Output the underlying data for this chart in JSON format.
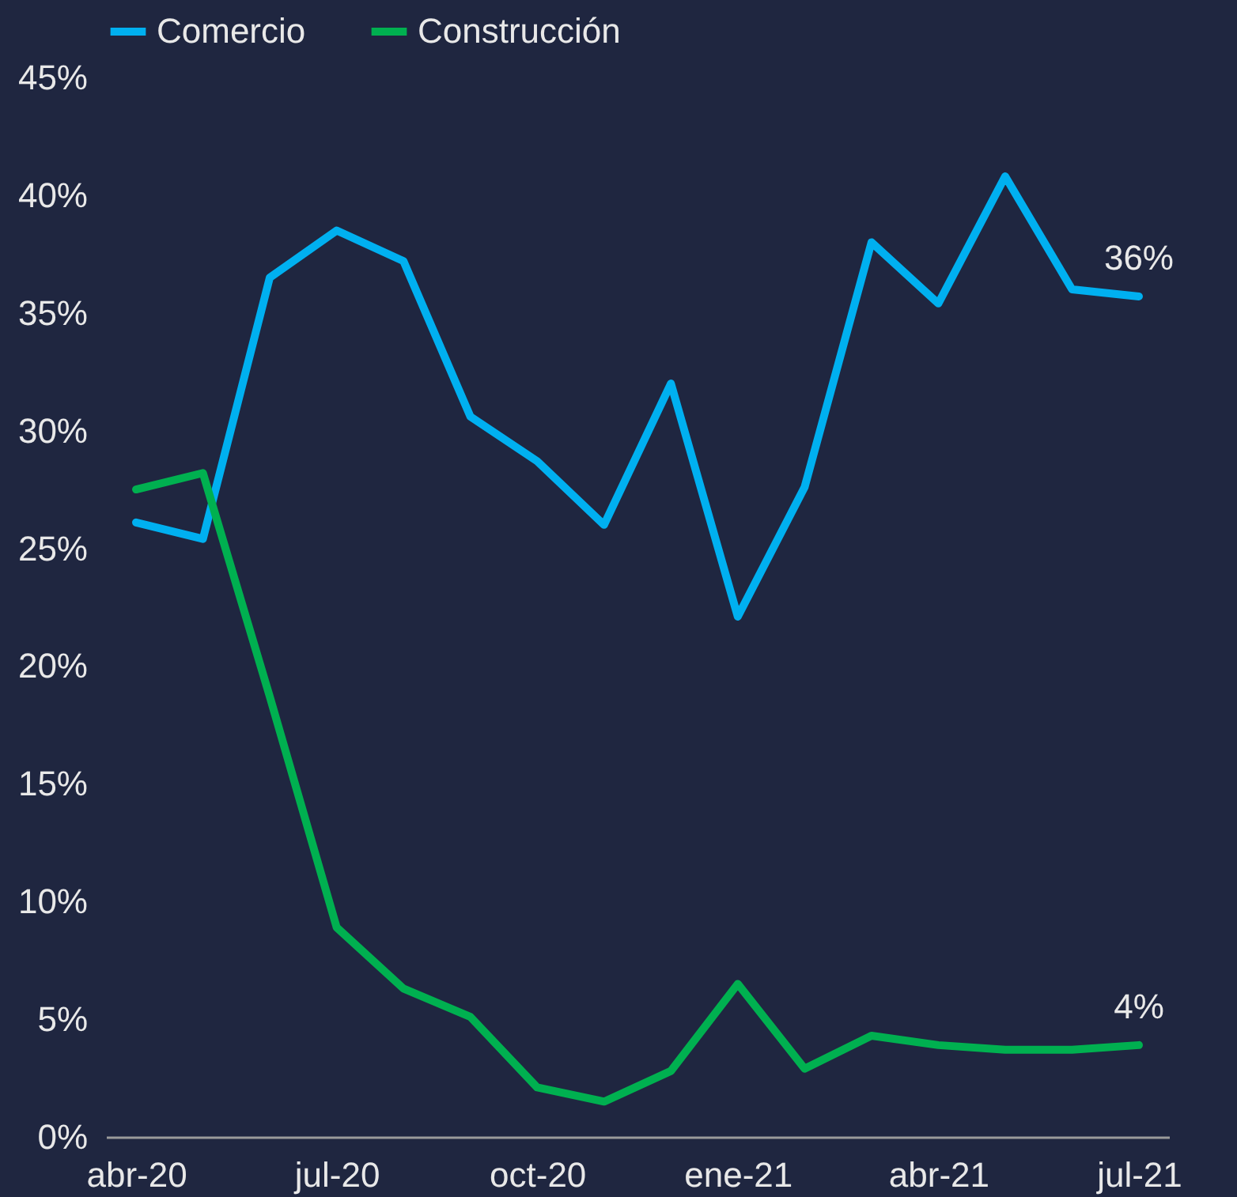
{
  "chart_data": {
    "type": "line",
    "categories": [
      "abr-20",
      null,
      null,
      "jul-20",
      null,
      null,
      "oct-20",
      null,
      null,
      "ene-21",
      null,
      null,
      "abr-21",
      null,
      null,
      "jul-21"
    ],
    "series": [
      {
        "name": "Comercio",
        "color": "#00b0f0",
        "values": [
          26.1,
          25.4,
          36.5,
          38.5,
          37.2,
          30.6,
          28.7,
          26.0,
          32.0,
          22.1,
          27.6,
          38.0,
          35.4,
          40.8,
          36.0,
          35.7
        ],
        "value_labels": [
          null,
          null,
          null,
          null,
          null,
          null,
          null,
          null,
          null,
          null,
          null,
          null,
          null,
          null,
          null,
          "36%"
        ]
      },
      {
        "name": "Construcción",
        "color": "#00b050",
        "values": [
          27.5,
          28.2,
          18.7,
          8.9,
          6.3,
          5.1,
          2.1,
          1.5,
          2.8,
          6.5,
          2.9,
          4.3,
          3.9,
          3.7,
          3.7,
          3.9
        ],
        "value_labels": [
          null,
          null,
          null,
          null,
          null,
          null,
          null,
          null,
          null,
          null,
          null,
          null,
          null,
          null,
          null,
          "4%"
        ]
      }
    ],
    "ylim": [
      0,
      45
    ],
    "yticks": [
      {
        "value": 0,
        "label": "0%"
      },
      {
        "value": 5,
        "label": "5%"
      },
      {
        "value": 10,
        "label": "10%"
      },
      {
        "value": 15,
        "label": "15%"
      },
      {
        "value": 20,
        "label": "20%"
      },
      {
        "value": 25,
        "label": "25%"
      },
      {
        "value": 30,
        "label": "30%"
      },
      {
        "value": 35,
        "label": "35%"
      },
      {
        "value": 40,
        "label": "40%"
      },
      {
        "value": 45,
        "label": "45%"
      }
    ],
    "grid": false,
    "legend": "top"
  }
}
